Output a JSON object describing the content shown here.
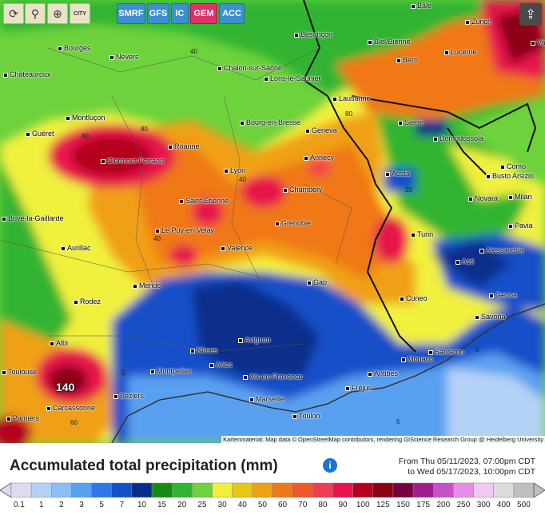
{
  "toolbar": {
    "tools": [
      {
        "name": "refresh-icon",
        "glyph": "⟳"
      },
      {
        "name": "location-pin-icon",
        "glyph": "⚲"
      },
      {
        "name": "zoom-icon",
        "glyph": "⊕"
      },
      {
        "name": "city-icon",
        "glyph": "CITY"
      }
    ],
    "models": [
      "SMRF",
      "GFS",
      "IC",
      "GEM",
      "ACC"
    ],
    "active_model": "GEM",
    "share_icon": "share-icon"
  },
  "map": {
    "cities": [
      "Bâle",
      "Zurich",
      "Vad",
      "Besançon",
      "Biel/Bienne",
      "Bourges",
      "Nevers",
      "Chalon-sur-Saône",
      "Lons-le-Saunier",
      "Bern",
      "Lucerne",
      "Châteauroux",
      "Lausanne",
      "Montluçon",
      "Bourg-en-Bresse",
      "Geneva",
      "Sierre",
      "Guéret",
      "Roanne",
      "Domodossola",
      "Clermont-Ferrand",
      "Annecy",
      "Como",
      "Busto Arsizio",
      "Lyon",
      "Aosta",
      "Chambéry",
      "Novara",
      "Milan",
      "Saint-Étienne",
      "Brive-la-Gaillarde",
      "Le Puy-en-Velay",
      "Grenoble",
      "Pavia",
      "Aurillac",
      "Turin",
      "Valence",
      "Alessandria",
      "Asti",
      "Mende",
      "Gap",
      "Rodez",
      "Cuneo",
      "Genoa",
      "Savona",
      "Albi",
      "Avignon",
      "Toulouse",
      "Nîmes",
      "Arles",
      "Sanremo",
      "Monaco",
      "Montpellier",
      "Aix-en-Provence",
      "Antibes",
      "Béziers",
      "Marseille",
      "Fréjus",
      "Carcassonne",
      "Toulon",
      "Pamiers"
    ],
    "contour_labels": [
      "40",
      "80",
      "80",
      "40",
      "80",
      "40",
      "60",
      "140",
      "5",
      "5",
      "5",
      "20"
    ],
    "max_label": "140",
    "attribution": "Kartenmaterial: Map data © OpenStreetMap contributors, rendering GIScience Research Group @ Heidelberg University"
  },
  "legend": {
    "title": "Accumulated total precipitation (mm)",
    "from": "From Thu 05/11/2023, 07:00pm CDT",
    "to": "to Wed 05/17/2023, 10:00pm CDT",
    "ticks": [
      "0.1",
      "1",
      "2",
      "3",
      "5",
      "7",
      "10",
      "15",
      "20",
      "25",
      "30",
      "40",
      "50",
      "60",
      "70",
      "80",
      "90",
      "100",
      "125",
      "150",
      "175",
      "200",
      "250",
      "300",
      "400",
      "500"
    ],
    "colors": [
      "#dcdcf0",
      "#b4d2f5",
      "#8cbef5",
      "#5aa0f0",
      "#2d78e6",
      "#1450c8",
      "#0a2d8c",
      "#148c14",
      "#32b432",
      "#6ed23c",
      "#f0f03c",
      "#e6c814",
      "#f0a014",
      "#f07814",
      "#f05a28",
      "#f03c50",
      "#e6144b",
      "#b4001e",
      "#8c0014",
      "#78003c",
      "#a01e8c",
      "#c850c8",
      "#e68ce6",
      "#f0c8f0",
      "#dcdcdc",
      "#bebebe"
    ]
  }
}
